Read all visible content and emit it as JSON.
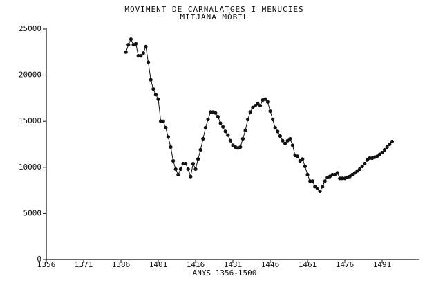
{
  "chart_data": {
    "type": "line",
    "title": "MOVIMENT DE CARNALATGES I MENUCIES",
    "subtitle": "MITJANA MÒBIL",
    "x_label": "ANYS 1356-1500",
    "x": [
      1388,
      1389,
      1390,
      1391,
      1392,
      1393,
      1394,
      1395,
      1396,
      1397,
      1398,
      1399,
      1400,
      1401,
      1402,
      1403,
      1404,
      1405,
      1406,
      1407,
      1408,
      1409,
      1410,
      1411,
      1412,
      1413,
      1414,
      1415,
      1416,
      1417,
      1418,
      1419,
      1420,
      1421,
      1422,
      1423,
      1424,
      1425,
      1426,
      1427,
      1428,
      1429,
      1430,
      1431,
      1432,
      1433,
      1434,
      1435,
      1436,
      1437,
      1438,
      1439,
      1440,
      1441,
      1442,
      1443,
      1444,
      1445,
      1446,
      1447,
      1448,
      1449,
      1450,
      1451,
      1452,
      1453,
      1454,
      1455,
      1456,
      1457,
      1458,
      1459,
      1460,
      1461,
      1462,
      1463,
      1464,
      1465,
      1466,
      1467,
      1468,
      1469,
      1470,
      1471,
      1472,
      1473,
      1474,
      1475,
      1476,
      1477,
      1478,
      1479,
      1480,
      1481,
      1482,
      1483,
      1484,
      1485,
      1486,
      1487,
      1488,
      1489,
      1490,
      1491,
      1492,
      1493,
      1494,
      1495
    ],
    "series": [
      {
        "name": "Mitjana mòbil",
        "color": "#111111",
        "values": [
          22500,
          23300,
          23900,
          23300,
          23400,
          22100,
          22100,
          22400,
          23100,
          21400,
          19500,
          18500,
          17900,
          17400,
          15000,
          15000,
          14300,
          13300,
          12200,
          10700,
          9800,
          9200,
          9800,
          10400,
          10400,
          9800,
          9000,
          10400,
          9800,
          10900,
          11900,
          13100,
          14300,
          15200,
          16000,
          16000,
          15900,
          15500,
          14800,
          14400,
          13900,
          13500,
          12900,
          12400,
          12200,
          12100,
          12200,
          13100,
          14000,
          15200,
          16000,
          16500,
          16700,
          16900,
          16700,
          17300,
          17400,
          17100,
          16100,
          15200,
          14300,
          13900,
          13400,
          12900,
          12600,
          12900,
          13100,
          12400,
          11300,
          11200,
          10700,
          10900,
          10100,
          9200,
          8500,
          8500,
          7900,
          7700,
          7400,
          7900,
          8500,
          8900,
          9000,
          9200,
          9200,
          9400,
          8800,
          8800,
          8800,
          8900,
          9000,
          9200,
          9400,
          9600,
          9800,
          10100,
          10400,
          10800,
          11000,
          11000,
          11100,
          11200,
          11400,
          11600,
          11900,
          12200,
          12500,
          12800
        ]
      }
    ],
    "xlim": [
      1356,
      1506
    ],
    "xticks": [
      1356,
      1371,
      1386,
      1401,
      1416,
      1431,
      1446,
      1461,
      1476,
      1491
    ],
    "ylim": [
      0,
      25000
    ],
    "yticks": [
      0,
      5000,
      10000,
      15000,
      20000,
      25000
    ],
    "grid": false
  }
}
